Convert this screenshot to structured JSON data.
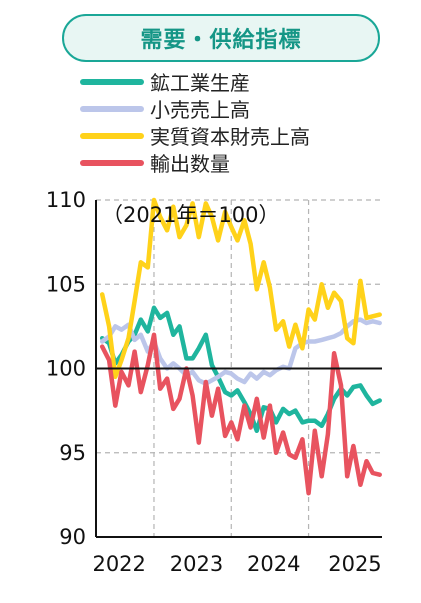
{
  "title": "需要・供給指標",
  "chart_data": {
    "type": "line",
    "note": "（2021年＝100）",
    "xlabels": [
      "2022",
      "2023",
      "2024",
      "2025"
    ],
    "yticks": [
      90,
      95,
      100,
      105,
      110
    ],
    "ylim": [
      90,
      110
    ],
    "xlim": [
      2021.75,
      2025.45
    ],
    "grid": true,
    "legend_position": "top-left",
    "baseline": 100,
    "series": [
      {
        "name": "鉱工業生産",
        "color": "#1fb59e",
        "x": [
          2021.83,
          2021.92,
          2022.0,
          2022.08,
          2022.17,
          2022.25,
          2022.33,
          2022.42,
          2022.5,
          2022.58,
          2022.67,
          2022.75,
          2022.83,
          2022.92,
          2023.0,
          2023.08,
          2023.17,
          2023.25,
          2023.33,
          2023.42,
          2023.5,
          2023.58,
          2023.67,
          2023.75,
          2023.83,
          2023.92,
          2024.0,
          2024.08,
          2024.17,
          2024.25,
          2024.33,
          2024.42,
          2024.5,
          2024.58,
          2024.67,
          2024.75,
          2024.83,
          2024.92,
          2025.0,
          2025.08,
          2025.17,
          2025.25,
          2025.33,
          2025.42
        ],
        "y": [
          101.8,
          101.5,
          100.3,
          100.8,
          101.6,
          102.0,
          102.9,
          102.2,
          103.6,
          103.0,
          103.3,
          102.0,
          102.5,
          100.6,
          100.6,
          101.2,
          102.0,
          100.2,
          99.5,
          98.6,
          98.4,
          98.7,
          98.0,
          97.3,
          96.3,
          97.7,
          97.6,
          96.8,
          97.6,
          97.3,
          97.5,
          96.8,
          96.9,
          96.9,
          96.6,
          97.3,
          98.2,
          98.8,
          98.4,
          98.9,
          99.0,
          98.4,
          97.9,
          98.1
        ]
      },
      {
        "name": "小売売上高",
        "color": "#bcc6ea",
        "x": [
          2021.83,
          2021.92,
          2022.0,
          2022.08,
          2022.17,
          2022.25,
          2022.33,
          2022.42,
          2022.5,
          2022.58,
          2022.67,
          2022.75,
          2022.83,
          2022.92,
          2023.0,
          2023.08,
          2023.17,
          2023.25,
          2023.33,
          2023.42,
          2023.5,
          2023.58,
          2023.67,
          2023.75,
          2023.83,
          2023.92,
          2024.0,
          2024.08,
          2024.17,
          2024.25,
          2024.33,
          2024.42,
          2024.5,
          2024.58,
          2024.67,
          2024.75,
          2024.83,
          2024.92,
          2025.0,
          2025.08,
          2025.17,
          2025.25,
          2025.33,
          2025.42
        ],
        "y": [
          101.6,
          101.9,
          102.5,
          102.3,
          102.6,
          101.7,
          102.0,
          101.0,
          101.6,
          100.6,
          100.0,
          100.3,
          100.0,
          99.6,
          99.8,
          99.3,
          99.1,
          99.3,
          99.5,
          99.8,
          99.7,
          99.4,
          99.2,
          99.7,
          99.4,
          99.8,
          99.6,
          99.9,
          100.1,
          100.0,
          101.2,
          101.5,
          101.6,
          101.6,
          101.7,
          101.8,
          101.9,
          102.1,
          102.5,
          102.8,
          102.9,
          102.7,
          102.8,
          102.7
        ]
      },
      {
        "name": "実質資本財売上高",
        "color": "#ffd21a",
        "x": [
          2021.83,
          2021.92,
          2022.0,
          2022.08,
          2022.17,
          2022.25,
          2022.33,
          2022.42,
          2022.5,
          2022.58,
          2022.67,
          2022.75,
          2022.83,
          2022.92,
          2023.0,
          2023.08,
          2023.17,
          2023.25,
          2023.33,
          2023.42,
          2023.5,
          2023.58,
          2023.67,
          2023.75,
          2023.83,
          2023.92,
          2024.0,
          2024.08,
          2024.17,
          2024.25,
          2024.33,
          2024.42,
          2024.5,
          2024.58,
          2024.67,
          2024.75,
          2024.83,
          2024.92,
          2025.0,
          2025.08,
          2025.17,
          2025.25,
          2025.33,
          2025.42
        ],
        "y": [
          104.4,
          102.5,
          99.5,
          100.5,
          101.8,
          104.0,
          106.3,
          106.0,
          110.0,
          109.0,
          108.2,
          109.6,
          107.8,
          108.5,
          109.8,
          107.8,
          109.8,
          109.0,
          107.6,
          109.3,
          108.4,
          107.6,
          108.8,
          107.4,
          104.7,
          106.3,
          104.8,
          102.3,
          102.8,
          101.3,
          102.6,
          101.2,
          103.5,
          102.9,
          105.0,
          103.6,
          104.5,
          104.0,
          101.8,
          101.5,
          105.2,
          103.0,
          103.1,
          103.2
        ]
      },
      {
        "name": "輸出数量",
        "color": "#e8535f",
        "x": [
          2021.83,
          2021.92,
          2022.0,
          2022.08,
          2022.17,
          2022.25,
          2022.33,
          2022.42,
          2022.5,
          2022.58,
          2022.67,
          2022.75,
          2022.83,
          2022.92,
          2023.0,
          2023.08,
          2023.17,
          2023.25,
          2023.33,
          2023.42,
          2023.5,
          2023.58,
          2023.67,
          2023.75,
          2023.83,
          2023.92,
          2024.0,
          2024.08,
          2024.17,
          2024.25,
          2024.33,
          2024.42,
          2024.5,
          2024.58,
          2024.67,
          2024.75,
          2024.83,
          2024.92,
          2025.0,
          2025.08,
          2025.17,
          2025.25,
          2025.33,
          2025.42
        ],
        "y": [
          101.3,
          100.5,
          97.8,
          99.8,
          99.0,
          101.0,
          98.6,
          100.2,
          102.0,
          98.8,
          99.4,
          97.6,
          98.2,
          100.0,
          98.4,
          95.6,
          99.2,
          97.2,
          98.8,
          96.0,
          96.8,
          95.8,
          97.8,
          96.5,
          98.2,
          95.9,
          97.8,
          95.0,
          96.2,
          94.9,
          94.7,
          95.8,
          92.6,
          96.3,
          93.6,
          96.1,
          100.9,
          99.0,
          93.6,
          95.4,
          93.1,
          94.5,
          93.8,
          93.7
        ]
      }
    ]
  }
}
